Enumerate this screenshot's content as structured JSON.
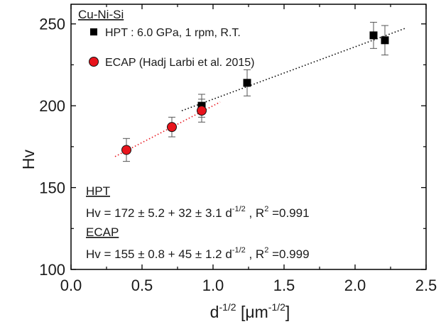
{
  "chart_data": {
    "type": "scatter",
    "xlabel_base": "d",
    "xlabel_exp": "-1/2",
    "xlabel_unit_open": " [",
    "xlabel_unit_base": "μm",
    "xlabel_unit_exp": "-1/2",
    "xlabel_unit_close": "]",
    "ylabel": "Hv",
    "xlim": [
      0.0,
      2.5
    ],
    "ylim": [
      100,
      262
    ],
    "xticks": [
      "0.0",
      "0.5",
      "1.0",
      "1.5",
      "2.0",
      "2.5"
    ],
    "xtick_values": [
      0.0,
      0.5,
      1.0,
      1.5,
      2.0,
      2.5
    ],
    "yticks": [
      "100",
      "150",
      "200",
      "250"
    ],
    "ytick_values": [
      100,
      150,
      200,
      250
    ],
    "grid": false,
    "legend_title": "Cu-Ni-Si",
    "legend_position": "top-left",
    "series": [
      {
        "name": "HPT : 6.0 GPa, 1 rpm, R.T.",
        "marker": "square",
        "color": "#000000",
        "points": [
          {
            "x": 0.92,
            "y": 200,
            "err": 7
          },
          {
            "x": 1.24,
            "y": 214,
            "err": 8
          },
          {
            "x": 2.13,
            "y": 243,
            "err": 8
          },
          {
            "x": 2.21,
            "y": 240,
            "err": 9
          }
        ],
        "fit": {
          "intercept": 172,
          "slope": 32,
          "x_range": [
            0.78,
            2.36
          ],
          "color": "#000000"
        }
      },
      {
        "name": "ECAP (Hadj Larbi et al. 2015)",
        "marker": "circle",
        "color": "#e8141c",
        "points": [
          {
            "x": 0.39,
            "y": 173,
            "err": 7
          },
          {
            "x": 0.71,
            "y": 187,
            "err": 6
          },
          {
            "x": 0.92,
            "y": 197,
            "err": 7
          }
        ],
        "fit": {
          "intercept": 155,
          "slope": 45,
          "x_range": [
            0.31,
            1.05
          ],
          "color": "#e8141c"
        }
      }
    ],
    "annotations": [
      {
        "heading": "HPT",
        "eq_main": "Hv = 172 ± 5.2 + 32 ± 3.1 d",
        "eq_exp": "-1/2",
        "eq_r2": " , R",
        "eq_r2_exp": "2",
        "eq_r2_value": " =0.991"
      },
      {
        "heading": "ECAP",
        "eq_main": "Hv = 155 ± 0.8 + 45 ± 1.2 d",
        "eq_exp": "-1/2",
        "eq_r2": " , R",
        "eq_r2_exp": "2",
        "eq_r2_value": " =0.999"
      }
    ]
  }
}
